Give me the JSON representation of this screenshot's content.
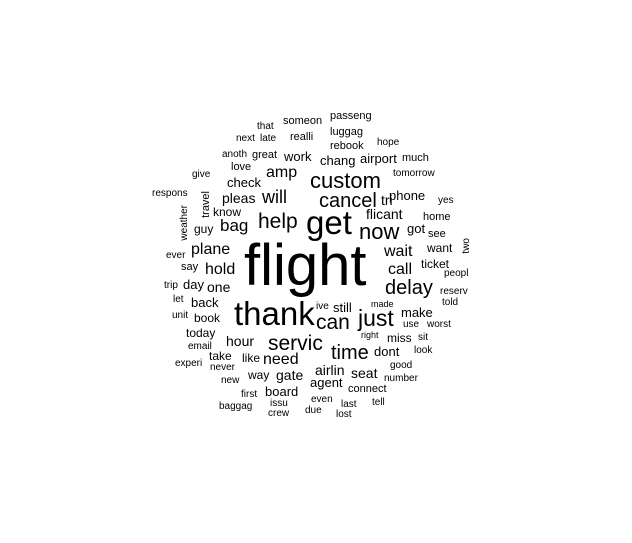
{
  "word_cloud": {
    "text_color": "#000000",
    "background": "#ffffff",
    "words": {
      "flight": "flight",
      "thank": "thank",
      "get": "get",
      "custom": "custom",
      "cancel": "cancel",
      "help": "help",
      "now": "now",
      "can": "can",
      "just": "just",
      "servic": "servic",
      "delay": "delay",
      "time": "time",
      "bag": "bag",
      "will": "will",
      "plane": "plane",
      "call": "call",
      "wait": "wait",
      "hold": "hold",
      "need": "need",
      "amp": "amp",
      "pleas": "pleas",
      "hour": "hour",
      "airlin": "airlin",
      "seat": "seat",
      "flicant": "flicant",
      "tri": "tri",
      "check": "check",
      "back": "back",
      "one": "one",
      "make": "make",
      "still": "still",
      "gate": "gate",
      "agent": "agent",
      "dont": "dont",
      "board": "board",
      "phone": "phone",
      "got": "got",
      "want": "want",
      "ticket": "ticket",
      "miss": "miss",
      "day": "day",
      "today": "today",
      "take": "take",
      "like": "like",
      "way": "way",
      "book": "book",
      "work": "work",
      "chang": "chang",
      "airport": "airport",
      "much": "much",
      "rebook": "rebook",
      "luggag": "luggag",
      "passeng": "passeng",
      "someon": "someon",
      "realli": "realli",
      "that": "that",
      "next": "next",
      "late": "late",
      "anoth": "anoth",
      "great": "great",
      "love": "love",
      "give": "give",
      "respons": "respons",
      "travel": "travel",
      "know": "know",
      "guy": "guy",
      "weather": "weather",
      "ever": "ever",
      "say": "say",
      "trip": "trip",
      "let": "let",
      "unit": "unit",
      "email": "email",
      "experi": "experi",
      "never": "never",
      "new": "new",
      "first": "first",
      "baggag": "baggag",
      "issu": "issu",
      "crew": "crew",
      "due": "due",
      "even": "even",
      "last": "last",
      "lost": "lost",
      "tell": "tell",
      "connect": "connect",
      "number": "number",
      "look": "look",
      "good": "good",
      "sit": "sit",
      "right": "right",
      "use": "use",
      "worst": "worst",
      "made": "made",
      "ive": "ive",
      "told": "told",
      "reserv": "reserv",
      "peopl": "peopl",
      "two": "two",
      "see": "see",
      "home": "home",
      "yes": "yes",
      "tomorrow": "tomorrow",
      "hope": "hope"
    }
  }
}
